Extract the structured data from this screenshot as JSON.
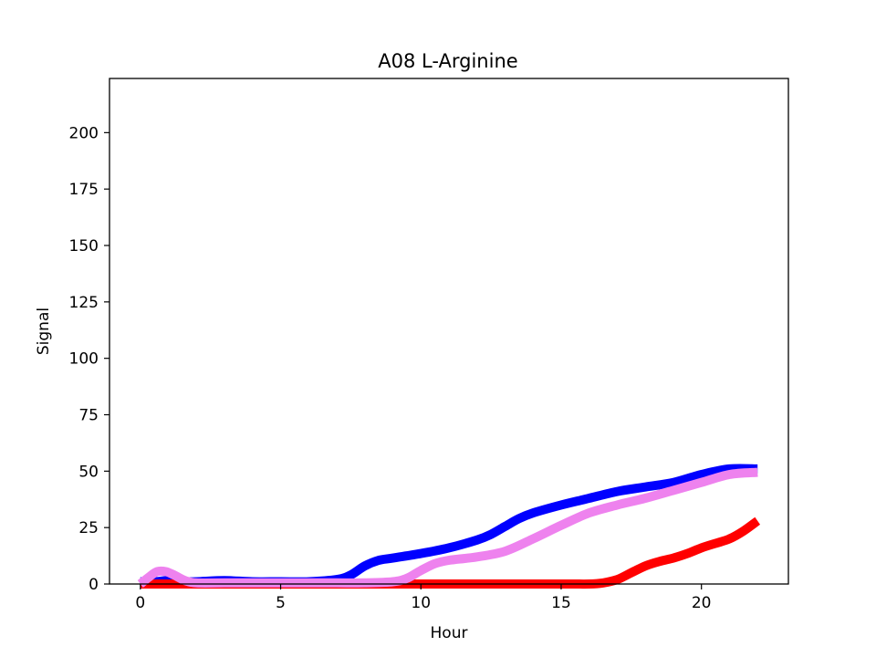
{
  "chart_data": {
    "type": "line",
    "title": "A08 L-Arginine",
    "xlabel": "Hour",
    "ylabel": "Signal",
    "xlim": [
      -1.1,
      23.1
    ],
    "ylim": [
      0,
      224
    ],
    "xticks": [
      0,
      5,
      10,
      15,
      20
    ],
    "yticks": [
      0,
      25,
      50,
      75,
      100,
      125,
      150,
      175,
      200
    ],
    "grid": false,
    "legend": false,
    "series": [
      {
        "color": "#0000ff",
        "x": [
          0,
          0.5,
          1,
          1.5,
          2,
          3,
          4,
          5,
          6,
          7,
          7.5,
          8,
          8.5,
          9,
          10,
          11,
          12,
          12.5,
          13,
          13.5,
          14,
          15,
          16,
          17,
          18,
          19,
          20,
          21,
          22
        ],
        "values": [
          1,
          1,
          1.5,
          1,
          1,
          1.5,
          1,
          1,
          1,
          2,
          4,
          8,
          10.5,
          11.5,
          13.5,
          16,
          19.5,
          22,
          25.5,
          29,
          31.5,
          35,
          38,
          41,
          43,
          45,
          48.5,
          51,
          51
        ]
      },
      {
        "color": "#ff0000",
        "x": [
          0,
          5,
          10,
          15,
          16,
          16.5,
          17,
          17.5,
          18,
          18.5,
          19,
          19.5,
          20,
          20.5,
          21,
          21.5,
          22
        ],
        "values": [
          0,
          0,
          0,
          0,
          0,
          0.5,
          2,
          5,
          8,
          10,
          11.5,
          13.5,
          16,
          18,
          20,
          23.5,
          28
        ]
      },
      {
        "color": "#ee82ee",
        "x": [
          0,
          0.3,
          0.6,
          0.9,
          1.2,
          1.6,
          2,
          3,
          4,
          5,
          6,
          7,
          8,
          9,
          9.5,
          10,
          10.5,
          11,
          12,
          13,
          14,
          15,
          16,
          17,
          18,
          19,
          20,
          21,
          22
        ],
        "values": [
          0,
          3,
          5.5,
          5.5,
          4,
          1.5,
          0.5,
          0.5,
          0.5,
          0.5,
          0.5,
          0.5,
          0.5,
          1,
          2.5,
          6,
          9,
          10.5,
          12,
          14.5,
          20,
          26,
          31.5,
          35,
          38,
          41.5,
          45,
          48.5,
          49.5
        ]
      }
    ]
  }
}
